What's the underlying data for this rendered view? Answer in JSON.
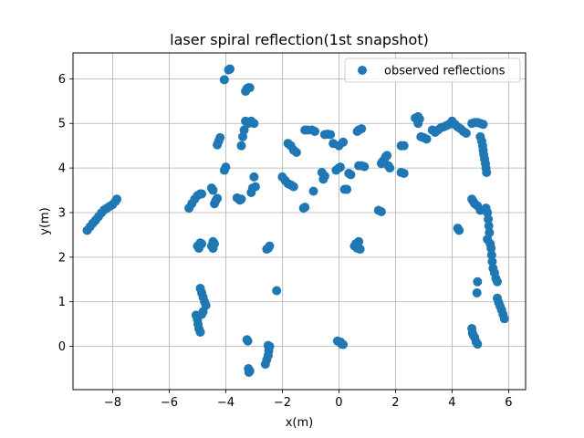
{
  "chart_data": {
    "type": "scatter",
    "title": "laser spiral reflection(1st snapshot)",
    "xlabel": "x(m)",
    "ylabel": "y(m)",
    "xlim": [
      -9.4,
      6.6
    ],
    "ylim": [
      -0.97,
      6.58
    ],
    "xticks": [
      -8,
      -6,
      -4,
      -2,
      0,
      2,
      4,
      6
    ],
    "yticks": [
      0,
      1,
      2,
      3,
      4,
      5,
      6
    ],
    "grid": true,
    "legend_position": "top-right",
    "marker_color": "#1f77b4",
    "series": [
      {
        "name": "observed reflections",
        "points": [
          [
            -8.9,
            2.6
          ],
          [
            -8.8,
            2.68
          ],
          [
            -8.7,
            2.76
          ],
          [
            -8.6,
            2.83
          ],
          [
            -8.5,
            2.91
          ],
          [
            -8.4,
            2.99
          ],
          [
            -8.3,
            3.06
          ],
          [
            -8.2,
            3.1
          ],
          [
            -8.1,
            3.14
          ],
          [
            -8.0,
            3.18
          ],
          [
            -7.9,
            3.25
          ],
          [
            -7.85,
            3.3
          ],
          [
            -5.3,
            3.1
          ],
          [
            -5.2,
            3.2
          ],
          [
            -5.1,
            3.3
          ],
          [
            -5.0,
            3.38
          ],
          [
            -4.9,
            3.42
          ],
          [
            -4.85,
            3.42
          ],
          [
            -5.0,
            2.25
          ],
          [
            -4.95,
            2.2
          ],
          [
            -4.9,
            2.32
          ],
          [
            -4.85,
            2.3
          ],
          [
            -4.5,
            2.25
          ],
          [
            -4.45,
            2.2
          ],
          [
            -4.45,
            2.35
          ],
          [
            -4.4,
            2.3
          ],
          [
            -5.05,
            0.7
          ],
          [
            -5.0,
            0.6
          ],
          [
            -4.98,
            0.5
          ],
          [
            -4.95,
            0.4
          ],
          [
            -4.9,
            0.32
          ],
          [
            -4.85,
            0.72
          ],
          [
            -4.8,
            0.78
          ],
          [
            -4.9,
            1.3
          ],
          [
            -4.85,
            1.2
          ],
          [
            -4.8,
            1.1
          ],
          [
            -4.75,
            1.0
          ],
          [
            -4.7,
            0.92
          ],
          [
            -4.5,
            3.55
          ],
          [
            -4.45,
            3.5
          ],
          [
            -4.4,
            3.2
          ],
          [
            -4.35,
            3.27
          ],
          [
            -4.3,
            3.32
          ],
          [
            -4.3,
            4.52
          ],
          [
            -4.25,
            4.6
          ],
          [
            -4.2,
            4.68
          ],
          [
            -4.05,
            3.95
          ],
          [
            -4.0,
            4.02
          ],
          [
            -4.05,
            5.98
          ],
          [
            -3.9,
            6.2
          ],
          [
            -3.85,
            6.22
          ],
          [
            -3.6,
            3.33
          ],
          [
            -3.5,
            3.28
          ],
          [
            -3.45,
            3.3
          ],
          [
            -3.45,
            4.5
          ],
          [
            -3.4,
            4.7
          ],
          [
            -3.35,
            4.85
          ],
          [
            -3.3,
            5.05
          ],
          [
            -3.2,
            5.0
          ],
          [
            -3.1,
            5.05
          ],
          [
            -3.0,
            5.0
          ],
          [
            -3.3,
            5.72
          ],
          [
            -3.25,
            5.78
          ],
          [
            -3.2,
            5.8
          ],
          [
            -3.15,
            5.8
          ],
          [
            -3.1,
            3.45
          ],
          [
            -3.05,
            3.55
          ],
          [
            -2.95,
            3.58
          ],
          [
            -3.0,
            3.8
          ],
          [
            -3.25,
            0.15
          ],
          [
            -3.22,
            0.12
          ],
          [
            -3.2,
            -0.5
          ],
          [
            -3.18,
            -0.58
          ],
          [
            -3.15,
            -0.55
          ],
          [
            -2.6,
            -0.4
          ],
          [
            -2.55,
            -0.3
          ],
          [
            -2.5,
            -0.2
          ],
          [
            -2.48,
            -0.1
          ],
          [
            -2.45,
            0.0
          ],
          [
            -2.5,
            0.02
          ],
          [
            -2.55,
            2.18
          ],
          [
            -2.5,
            2.2
          ],
          [
            -2.45,
            2.25
          ],
          [
            -2.2,
            1.25
          ],
          [
            -2.0,
            3.8
          ],
          [
            -1.9,
            3.72
          ],
          [
            -1.8,
            3.65
          ],
          [
            -1.7,
            3.62
          ],
          [
            -1.6,
            3.58
          ],
          [
            -1.8,
            4.55
          ],
          [
            -1.7,
            4.5
          ],
          [
            -1.6,
            4.4
          ],
          [
            -1.5,
            4.35
          ],
          [
            -1.25,
            3.1
          ],
          [
            -1.2,
            3.12
          ],
          [
            -1.2,
            4.85
          ],
          [
            -1.1,
            4.85
          ],
          [
            -0.95,
            4.85
          ],
          [
            -0.85,
            4.82
          ],
          [
            -0.9,
            3.48
          ],
          [
            -0.6,
            3.9
          ],
          [
            -0.55,
            3.75
          ],
          [
            -0.5,
            3.82
          ],
          [
            -0.5,
            4.75
          ],
          [
            -0.4,
            4.76
          ],
          [
            -0.3,
            4.75
          ],
          [
            -0.2,
            4.55
          ],
          [
            -0.1,
            3.95
          ],
          [
            0.0,
            4.0
          ],
          [
            0.05,
            4.02
          ],
          [
            0.0,
            4.5
          ],
          [
            0.15,
            4.58
          ],
          [
            0.2,
            3.52
          ],
          [
            0.28,
            3.52
          ],
          [
            0.35,
            3.88
          ],
          [
            0.42,
            3.85
          ],
          [
            -0.05,
            0.12
          ],
          [
            0.05,
            0.1
          ],
          [
            0.1,
            0.05
          ],
          [
            0.15,
            0.04
          ],
          [
            0.55,
            2.25
          ],
          [
            0.6,
            2.3
          ],
          [
            0.65,
            2.2
          ],
          [
            0.7,
            2.35
          ],
          [
            0.75,
            2.18
          ],
          [
            0.65,
            4.82
          ],
          [
            0.7,
            4.85
          ],
          [
            0.8,
            4.88
          ],
          [
            0.7,
            4.05
          ],
          [
            0.8,
            4.05
          ],
          [
            0.9,
            4.03
          ],
          [
            1.4,
            3.05
          ],
          [
            1.5,
            3.02
          ],
          [
            1.5,
            4.1
          ],
          [
            1.55,
            4.15
          ],
          [
            1.6,
            4.18
          ],
          [
            1.65,
            4.25
          ],
          [
            1.7,
            4.28
          ],
          [
            1.75,
            4.05
          ],
          [
            1.8,
            4.0
          ],
          [
            2.2,
            4.5
          ],
          [
            2.3,
            4.5
          ],
          [
            2.2,
            3.9
          ],
          [
            2.3,
            3.88
          ],
          [
            2.7,
            5.12
          ],
          [
            2.8,
            5.15
          ],
          [
            2.85,
            5.1
          ],
          [
            2.8,
            5.0
          ],
          [
            2.9,
            4.7
          ],
          [
            3.0,
            4.68
          ],
          [
            3.1,
            4.65
          ],
          [
            3.3,
            4.85
          ],
          [
            3.4,
            4.8
          ],
          [
            3.5,
            4.85
          ],
          [
            3.6,
            4.9
          ],
          [
            3.7,
            4.92
          ],
          [
            3.8,
            4.95
          ],
          [
            3.9,
            4.98
          ],
          [
            4.0,
            5.05
          ],
          [
            4.1,
            4.98
          ],
          [
            4.2,
            4.92
          ],
          [
            4.3,
            4.88
          ],
          [
            4.4,
            4.82
          ],
          [
            4.5,
            4.78
          ],
          [
            4.2,
            2.65
          ],
          [
            4.25,
            2.6
          ],
          [
            4.7,
            3.3
          ],
          [
            4.75,
            3.25
          ],
          [
            4.8,
            3.2
          ],
          [
            4.9,
            3.15
          ],
          [
            5.0,
            3.05
          ],
          [
            4.7,
            0.4
          ],
          [
            4.72,
            0.3
          ],
          [
            4.75,
            0.25
          ],
          [
            4.8,
            0.2
          ],
          [
            4.85,
            0.1
          ],
          [
            4.9,
            0.05
          ],
          [
            4.9,
            1.45
          ],
          [
            4.88,
            1.2
          ],
          [
            4.7,
            5.0
          ],
          [
            4.8,
            5.02
          ],
          [
            4.9,
            5.02
          ],
          [
            5.0,
            5.0
          ],
          [
            5.1,
            4.98
          ],
          [
            5.0,
            4.7
          ],
          [
            5.05,
            4.6
          ],
          [
            5.08,
            4.5
          ],
          [
            5.1,
            4.4
          ],
          [
            5.12,
            4.3
          ],
          [
            5.15,
            4.2
          ],
          [
            5.18,
            4.1
          ],
          [
            5.2,
            4.0
          ],
          [
            5.22,
            3.9
          ],
          [
            5.2,
            3.1
          ],
          [
            5.25,
            3.0
          ],
          [
            5.28,
            2.85
          ],
          [
            5.3,
            2.7
          ],
          [
            5.32,
            2.55
          ],
          [
            5.25,
            2.4
          ],
          [
            5.35,
            2.3
          ],
          [
            5.38,
            2.2
          ],
          [
            5.4,
            2.05
          ],
          [
            5.42,
            1.9
          ],
          [
            5.45,
            1.75
          ],
          [
            5.5,
            1.65
          ],
          [
            5.55,
            1.52
          ],
          [
            5.6,
            1.45
          ],
          [
            5.6,
            1.08
          ],
          [
            5.65,
            0.98
          ],
          [
            5.7,
            0.9
          ],
          [
            5.75,
            0.82
          ],
          [
            5.8,
            0.72
          ],
          [
            5.85,
            0.62
          ]
        ]
      }
    ]
  }
}
